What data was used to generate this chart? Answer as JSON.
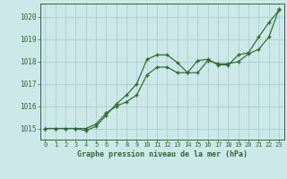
{
  "line1_y": [
    1015.0,
    1015.0,
    1015.0,
    1015.0,
    1014.9,
    1015.1,
    1015.6,
    1016.1,
    1016.5,
    1017.0,
    1018.1,
    1018.3,
    1018.3,
    1017.95,
    1017.5,
    1018.05,
    1018.1,
    1017.85,
    1017.85,
    1018.3,
    1018.4,
    1019.1,
    1019.75,
    1020.3
  ],
  "line2_y": [
    1015.0,
    1015.0,
    1015.0,
    1015.0,
    1015.0,
    1015.2,
    1015.7,
    1016.0,
    1016.2,
    1016.5,
    1017.4,
    1017.75,
    1017.75,
    1017.5,
    1017.5,
    1017.5,
    1018.05,
    1017.9,
    1017.9,
    1018.0,
    1018.35,
    1018.55,
    1019.1,
    1020.35
  ],
  "x": [
    0,
    1,
    2,
    3,
    4,
    5,
    6,
    7,
    8,
    9,
    10,
    11,
    12,
    13,
    14,
    15,
    16,
    17,
    18,
    19,
    20,
    21,
    22,
    23
  ],
  "line_color": "#2d6a2d",
  "bg_color": "#cce8e8",
  "grid_color": "#a8c8c8",
  "xlabel": "Graphe pression niveau de la mer (hPa)",
  "ylim": [
    1014.5,
    1020.6
  ],
  "xlim": [
    -0.5,
    23.5
  ],
  "yticks": [
    1015,
    1016,
    1017,
    1018,
    1019,
    1020
  ],
  "xtick_labels": [
    "0",
    "1",
    "2",
    "3",
    "4",
    "5",
    "6",
    "7",
    "8",
    "9",
    "10",
    "11",
    "12",
    "13",
    "14",
    "15",
    "16",
    "17",
    "18",
    "19",
    "20",
    "21",
    "22",
    "23"
  ]
}
